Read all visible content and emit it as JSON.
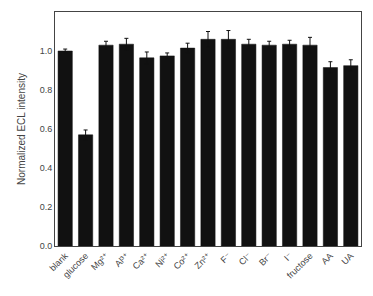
{
  "chart_data": {
    "type": "bar",
    "categories": [
      "blank",
      "glucose",
      "Mg²⁺",
      "Al³⁺",
      "Ca²⁺",
      "Ni²⁺",
      "Co²⁺",
      "Zn²⁺",
      "F⁻",
      "Cl⁻",
      "Br⁻",
      "I⁻",
      "fructose",
      "AA",
      "UA"
    ],
    "values": [
      1.0,
      0.57,
      1.03,
      1.035,
      0.965,
      0.975,
      1.015,
      1.06,
      1.06,
      1.035,
      1.03,
      1.035,
      1.03,
      0.915,
      0.925
    ],
    "errors": [
      0.01,
      0.025,
      0.02,
      0.03,
      0.03,
      0.015,
      0.025,
      0.04,
      0.045,
      0.025,
      0.02,
      0.02,
      0.04,
      0.03,
      0.03
    ],
    "color": "#111111",
    "ylabel": "Normalized ECL intensity",
    "ylim": [
      0,
      1.2
    ],
    "yticks": [
      {
        "value": 0,
        "label": "0.0"
      },
      0.2,
      0.4,
      0.6,
      0.8,
      {
        "value": 1,
        "label": "1.0"
      }
    ],
    "grid": false
  }
}
